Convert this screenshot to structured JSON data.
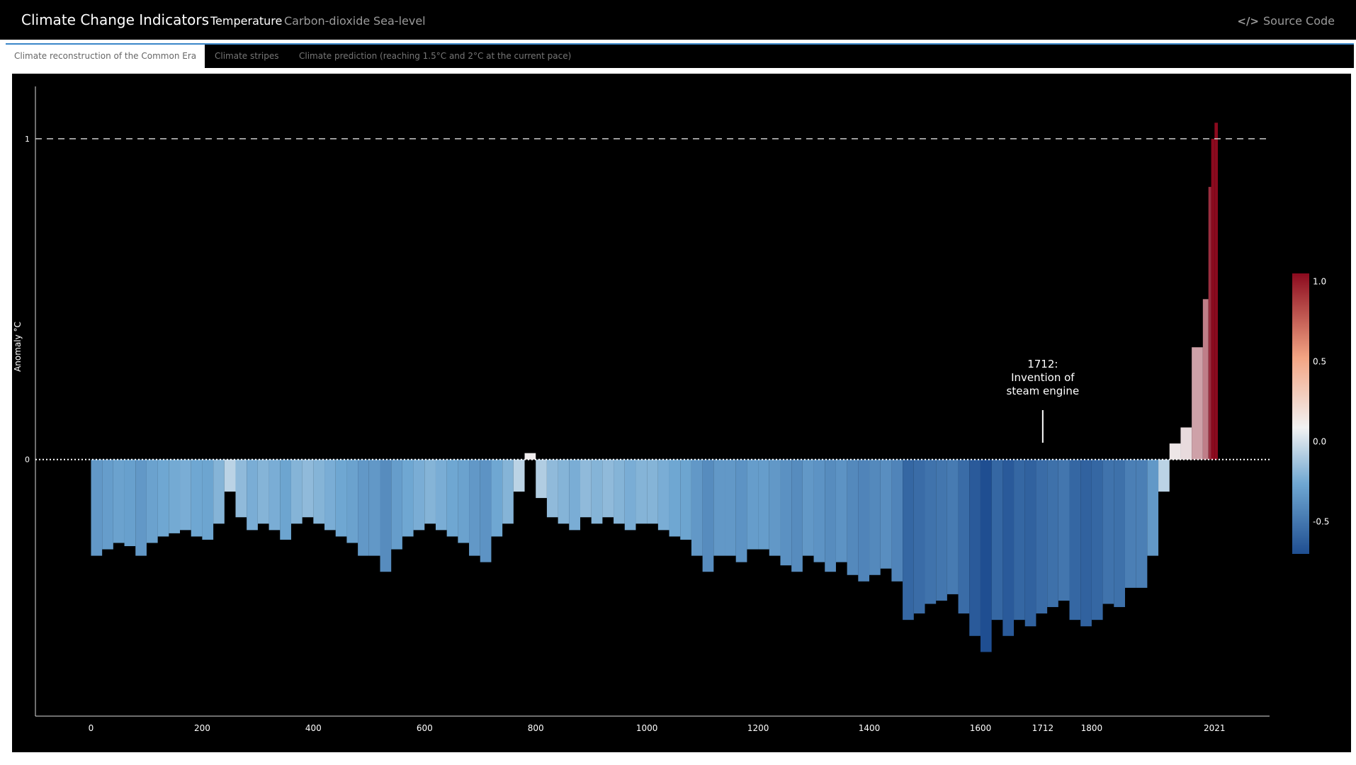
{
  "app": {
    "title": "Climate Change Indicators",
    "nav": [
      "Temperature",
      "Carbon-dioxide",
      "Sea-level"
    ],
    "source_label": "Source Code",
    "source_icon": "code-icon"
  },
  "tabs": [
    "Climate reconstruction of the Common Era",
    "Climate stripes",
    "Climate prediction (reaching 1.5°C and 2°C at the current pace)"
  ],
  "colors": {
    "background": "#000000",
    "cold": "#1f4e91",
    "neutral": "#f2f2f2",
    "warm": "#8b0a1e",
    "tab_accent": "#3a86c9"
  },
  "chart_data": {
    "type": "bar",
    "ylabel": "Anomaly °C",
    "xlim": [
      -100,
      2120
    ],
    "ylim": [
      -0.8,
      1.15
    ],
    "x_ticks": [
      "0",
      "200",
      "400",
      "600",
      "800",
      "1000",
      "1200",
      "1400",
      "1600",
      "1712",
      "1800",
      "2021"
    ],
    "y_ticks": [
      "1",
      "0"
    ],
    "reference_line": 1,
    "annotation": {
      "year": 1712,
      "lines": [
        "1712:",
        "Invention of",
        "steam engine"
      ]
    },
    "colorbar": {
      "ticks": [
        "1.0",
        "0.5",
        "0.0",
        "-0.5"
      ],
      "range": [
        -0.7,
        1.05
      ]
    },
    "series": [
      {
        "x": [
          0,
          20,
          40,
          60,
          80,
          100,
          120,
          140,
          160,
          180,
          200,
          220,
          240,
          260,
          280,
          300,
          320,
          340,
          360,
          380,
          400,
          420,
          440,
          460,
          480,
          500,
          520,
          540,
          560,
          580,
          600,
          620,
          640,
          660,
          680,
          700,
          720,
          740,
          760,
          780,
          800,
          820,
          840,
          860,
          880,
          900,
          920,
          940,
          960,
          980,
          1000,
          1020,
          1040,
          1060,
          1080,
          1100,
          1120,
          1140,
          1160,
          1180,
          1200,
          1220,
          1240,
          1260,
          1280,
          1300,
          1320,
          1340,
          1360,
          1380,
          1400,
          1420,
          1440,
          1460,
          1480,
          1500,
          1520,
          1540,
          1560,
          1580,
          1600,
          1620,
          1640,
          1660,
          1680,
          1700,
          1720,
          1740,
          1760,
          1780,
          1800,
          1820,
          1840,
          1860,
          1880,
          1900,
          1920,
          1940,
          1960,
          1980,
          2000,
          2010,
          2015,
          2021
        ],
        "values": [
          -0.3,
          -0.28,
          -0.26,
          -0.27,
          -0.3,
          -0.26,
          -0.24,
          -0.23,
          -0.22,
          -0.24,
          -0.25,
          -0.2,
          -0.1,
          -0.18,
          -0.22,
          -0.2,
          -0.22,
          -0.25,
          -0.2,
          -0.18,
          -0.2,
          -0.22,
          -0.24,
          -0.26,
          -0.3,
          -0.3,
          -0.35,
          -0.28,
          -0.24,
          -0.22,
          -0.2,
          -0.22,
          -0.24,
          -0.26,
          -0.3,
          -0.32,
          -0.24,
          -0.2,
          -0.1,
          0.02,
          -0.12,
          -0.18,
          -0.2,
          -0.22,
          -0.18,
          -0.2,
          -0.18,
          -0.2,
          -0.22,
          -0.2,
          -0.2,
          -0.22,
          -0.24,
          -0.25,
          -0.3,
          -0.35,
          -0.3,
          -0.3,
          -0.32,
          -0.28,
          -0.28,
          -0.3,
          -0.33,
          -0.35,
          -0.3,
          -0.32,
          -0.35,
          -0.32,
          -0.36,
          -0.38,
          -0.36,
          -0.34,
          -0.38,
          -0.5,
          -0.48,
          -0.45,
          -0.44,
          -0.42,
          -0.48,
          -0.55,
          -0.6,
          -0.5,
          -0.55,
          -0.5,
          -0.52,
          -0.48,
          -0.46,
          -0.44,
          -0.5,
          -0.52,
          -0.5,
          -0.45,
          -0.46,
          -0.4,
          -0.4,
          -0.3,
          -0.1,
          0.05,
          0.1,
          0.35,
          0.5,
          0.85,
          1.0,
          1.05
        ]
      }
    ]
  }
}
